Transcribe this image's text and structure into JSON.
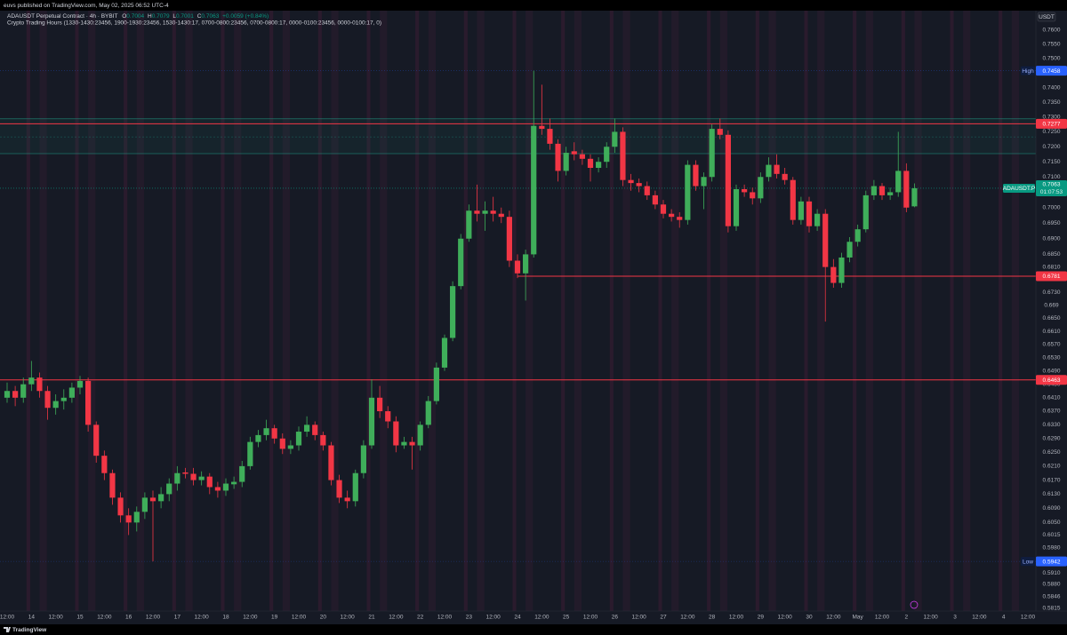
{
  "chart_data": {
    "type": "candlestick",
    "header": "euvs published on TradingView.com, May 02, 2025 06:52 UTC-4",
    "title": "ADAUSDT Perpetual Contract · 4h · BYBIT",
    "ohlc_keys": [
      "O",
      "H",
      "L",
      "C"
    ],
    "change_label": "+0.0059 (+0.84%)",
    "indicator": "Crypto Trading Hours (1330-1430:23456, 1900-1930:23456, 1530-1430:17, 0700-0800:23456, 0700-0800:17, 0000-0100:23456, 0000-0100:17, 0)",
    "currency": "USDT",
    "footer": "TradingView",
    "up_color": "#3fae5a",
    "down_color": "#f23645",
    "log_scale": true,
    "grid": false,
    "categories": [
      "12:00",
      null,
      null,
      "14",
      null,
      null,
      "12:00",
      null,
      null,
      "15",
      null,
      null,
      "12:00",
      null,
      null,
      "16",
      null,
      null,
      "12:00",
      null,
      null,
      "17",
      null,
      null,
      "12:00",
      null,
      null,
      "18",
      null,
      null,
      "12:00",
      null,
      null,
      "19",
      null,
      null,
      "12:00",
      null,
      null,
      "20",
      null,
      null,
      "12:00",
      null,
      null,
      "21",
      null,
      null,
      "12:00",
      null,
      null,
      "22",
      null,
      null,
      "12:00",
      null,
      null,
      "23",
      null,
      null,
      "12:00",
      null,
      null,
      "24",
      null,
      null,
      "12:00",
      null,
      null,
      "25",
      null,
      null,
      "12:00",
      null,
      null,
      "26",
      null,
      null,
      "12:00",
      null,
      null,
      "27",
      null,
      null,
      "12:00",
      null,
      null,
      "28",
      null,
      null,
      "12:00",
      null,
      null,
      "29",
      null,
      null,
      "12:00",
      null,
      null,
      "30",
      null,
      null,
      "12:00",
      null,
      null,
      "May",
      null,
      null,
      "12:00",
      null,
      null,
      "2",
      null,
      null,
      "12:00",
      null,
      null,
      "3",
      null,
      null,
      "12:00",
      null,
      null,
      "4",
      null,
      null,
      "12:00"
    ],
    "open": [
      0.641,
      0.643,
      0.641,
      0.645,
      0.647,
      0.643,
      0.638,
      0.64,
      0.641,
      0.644,
      0.646,
      0.633,
      0.624,
      0.619,
      0.612,
      0.607,
      0.605,
      0.608,
      0.612,
      0.611,
      0.613,
      0.616,
      0.6192,
      0.6188,
      0.617,
      0.618,
      0.615,
      0.614,
      0.6158,
      0.6165,
      0.621,
      0.628,
      0.63,
      0.632,
      0.629,
      0.626,
      0.627,
      0.631,
      0.633,
      0.63,
      0.627,
      0.617,
      0.612,
      0.611,
      0.619,
      0.627,
      0.641,
      0.637,
      0.634,
      0.627,
      0.628,
      0.627,
      0.633,
      0.64,
      0.65,
      0.659,
      0.675,
      0.69,
      0.699,
      0.698,
      0.699,
      0.698,
      0.697,
      0.683,
      0.679,
      0.685,
      0.727,
      0.726,
      0.721,
      0.712,
      0.7185,
      0.7175,
      0.716,
      0.713,
      0.715,
      0.72,
      0.725,
      0.709,
      0.708,
      0.707,
      0.704,
      0.701,
      0.698,
      0.697,
      0.696,
      0.714,
      0.707,
      0.71,
      0.726,
      0.724,
      0.694,
      0.706,
      0.705,
      0.703,
      0.71,
      0.714,
      0.711,
      0.709,
      0.696,
      0.702,
      0.694,
      0.698,
      0.681,
      0.676,
      0.684,
      0.689,
      0.693,
      0.704,
      0.707,
      0.704,
      0.705,
      0.712,
      0.7004,
      null,
      null,
      null,
      null,
      null,
      null,
      null,
      null,
      null,
      null,
      null,
      null,
      null,
      null
    ],
    "high": [
      0.6455,
      0.6445,
      0.647,
      0.652,
      0.6485,
      0.6445,
      0.642,
      0.6435,
      0.6455,
      0.6475,
      0.647,
      0.634,
      0.6255,
      0.62,
      0.6135,
      0.609,
      0.6095,
      0.6135,
      0.614,
      0.615,
      0.6175,
      0.621,
      0.6205,
      0.6205,
      0.6195,
      0.619,
      0.6165,
      0.6175,
      0.618,
      0.6225,
      0.6295,
      0.6315,
      0.6345,
      0.633,
      0.6305,
      0.6285,
      0.6325,
      0.6355,
      0.634,
      0.631,
      0.628,
      0.6185,
      0.614,
      0.62,
      0.6285,
      0.6465,
      0.6445,
      0.6385,
      0.6355,
      0.6295,
      0.6295,
      0.634,
      0.6415,
      0.6515,
      0.66,
      0.6765,
      0.6915,
      0.701,
      0.7075,
      0.702,
      0.7035,
      0.7,
      0.699,
      0.685,
      0.6865,
      0.7458,
      0.741,
      0.7295,
      0.7225,
      0.72,
      0.7215,
      0.719,
      0.7175,
      0.7165,
      0.7215,
      0.7295,
      0.7265,
      0.711,
      0.7095,
      0.7085,
      0.7055,
      0.7025,
      0.6995,
      0.6985,
      0.7155,
      0.7155,
      0.7115,
      0.7275,
      0.7295,
      0.7255,
      0.7075,
      0.7075,
      0.7065,
      0.7115,
      0.7165,
      0.7175,
      0.713,
      0.71,
      0.7035,
      0.7035,
      0.6995,
      0.6995,
      0.6835,
      0.6855,
      0.6905,
      0.6945,
      0.7055,
      0.709,
      0.708,
      0.7065,
      0.725,
      0.7145,
      0.7079,
      null,
      null,
      null,
      null,
      null,
      null,
      null,
      null,
      null,
      null,
      null,
      null,
      null,
      null
    ],
    "low": [
      0.6395,
      0.6385,
      0.6395,
      0.643,
      0.641,
      0.6345,
      0.636,
      0.6375,
      0.6395,
      0.642,
      0.631,
      0.622,
      0.617,
      0.61,
      0.605,
      0.6015,
      0.6025,
      0.606,
      0.5942,
      0.609,
      0.611,
      0.614,
      0.6175,
      0.6155,
      0.6155,
      0.613,
      0.612,
      0.6125,
      0.6145,
      0.615,
      0.62,
      0.6265,
      0.6285,
      0.6275,
      0.6245,
      0.6245,
      0.6255,
      0.6295,
      0.6285,
      0.6255,
      0.6155,
      0.6105,
      0.609,
      0.6095,
      0.6175,
      0.626,
      0.635,
      0.632,
      0.625,
      0.626,
      0.62,
      0.6255,
      0.632,
      0.639,
      0.649,
      0.658,
      0.674,
      0.689,
      0.6955,
      0.6925,
      0.6955,
      0.695,
      0.681,
      0.6775,
      0.6705,
      0.684,
      0.724,
      0.719,
      0.7085,
      0.7105,
      0.7155,
      0.714,
      0.7085,
      0.7115,
      0.713,
      0.718,
      0.707,
      0.7055,
      0.705,
      0.7025,
      0.6995,
      0.6965,
      0.6955,
      0.6935,
      0.6945,
      0.7055,
      0.6995,
      0.7085,
      0.7225,
      0.692,
      0.6925,
      0.7035,
      0.701,
      0.7015,
      0.7085,
      0.7095,
      0.7075,
      0.6945,
      0.6945,
      0.692,
      0.6925,
      0.664,
      0.6745,
      0.6745,
      0.6825,
      0.6875,
      0.692,
      0.7025,
      0.7025,
      0.7025,
      0.7035,
      0.6985,
      0.7001,
      null,
      null,
      null,
      null,
      null,
      null,
      null,
      null,
      null,
      null,
      null,
      null,
      null,
      null
    ],
    "close": [
      0.643,
      0.641,
      0.645,
      0.647,
      0.643,
      0.638,
      0.64,
      0.641,
      0.644,
      0.646,
      0.633,
      0.624,
      0.619,
      0.612,
      0.607,
      0.605,
      0.608,
      0.612,
      0.611,
      0.613,
      0.616,
      0.619,
      0.6188,
      0.617,
      0.618,
      0.615,
      0.614,
      0.616,
      0.6165,
      0.621,
      0.628,
      0.63,
      0.632,
      0.629,
      0.626,
      0.627,
      0.631,
      0.633,
      0.63,
      0.627,
      0.617,
      0.612,
      0.611,
      0.619,
      0.627,
      0.641,
      0.637,
      0.634,
      0.627,
      0.628,
      0.627,
      0.633,
      0.64,
      0.65,
      0.659,
      0.675,
      0.69,
      0.699,
      0.698,
      0.699,
      0.698,
      0.697,
      0.683,
      0.679,
      0.685,
      0.727,
      0.726,
      0.721,
      0.712,
      0.718,
      0.7175,
      0.716,
      0.713,
      0.715,
      0.72,
      0.725,
      0.709,
      0.708,
      0.707,
      0.704,
      0.701,
      0.698,
      0.697,
      0.696,
      0.714,
      0.707,
      0.71,
      0.726,
      0.724,
      0.694,
      0.706,
      0.705,
      0.703,
      0.71,
      0.714,
      0.711,
      0.709,
      0.696,
      0.702,
      0.694,
      0.698,
      0.681,
      0.676,
      0.684,
      0.689,
      0.693,
      0.704,
      0.707,
      0.704,
      0.705,
      0.712,
      0.7,
      0.7063,
      null,
      null,
      null,
      null,
      null,
      null,
      null,
      null,
      null,
      null,
      null,
      null,
      null,
      null
    ],
    "ylim": [
      0.5807,
      0.7637
    ],
    "yticks": [
      {
        "value": 0.76,
        "label": "0.7600"
      },
      {
        "value": 0.755,
        "label": "0.7550"
      },
      {
        "value": 0.75,
        "label": "0.7500"
      },
      {
        "value": 0.74,
        "label": "0.7400"
      },
      {
        "value": 0.735,
        "label": "0.7350"
      },
      {
        "value": 0.73,
        "label": "0.7300"
      },
      {
        "value": 0.725,
        "label": "0.7250"
      },
      {
        "value": 0.72,
        "label": "0.7200"
      },
      {
        "value": 0.715,
        "label": "0.7150"
      },
      {
        "value": 0.71,
        "label": "0.7100"
      },
      {
        "value": 0.7,
        "label": "0.7000"
      },
      {
        "value": 0.695,
        "label": "0.6950"
      },
      {
        "value": 0.69,
        "label": "0.6900"
      },
      {
        "value": 0.685,
        "label": "0.6850"
      },
      {
        "value": 0.681,
        "label": "0.6810"
      },
      {
        "value": 0.673,
        "label": "0.6730"
      },
      0.669,
      {
        "value": 0.665,
        "label": "0.6650"
      },
      {
        "value": 0.661,
        "label": "0.6610"
      },
      {
        "value": 0.657,
        "label": "0.6570"
      },
      {
        "value": 0.653,
        "label": "0.6530"
      },
      {
        "value": 0.649,
        "label": "0.6490"
      },
      {
        "value": 0.645,
        "label": "0.6450"
      },
      {
        "value": 0.641,
        "label": "0.6410"
      },
      {
        "value": 0.637,
        "label": "0.6370"
      },
      {
        "value": 0.633,
        "label": "0.6330"
      },
      {
        "value": 0.629,
        "label": "0.6290"
      },
      {
        "value": 0.625,
        "label": "0.6250"
      },
      {
        "value": 0.621,
        "label": "0.6210"
      },
      {
        "value": 0.617,
        "label": "0.6170"
      },
      {
        "value": 0.613,
        "label": "0.6130"
      },
      {
        "value": 0.609,
        "label": "0.6090"
      },
      {
        "value": 0.605,
        "label": "0.6050"
      },
      0.6015,
      {
        "value": 0.598,
        "label": "0.5980"
      },
      {
        "value": 0.591,
        "label": "0.5910"
      },
      {
        "value": 0.588,
        "label": "0.5880"
      },
      0.5846,
      0.5815
    ],
    "zone": {
      "top": 0.7294,
      "mid": 0.7233,
      "bottom": 0.7177,
      "color": "#22ab94"
    },
    "levels": [
      {
        "value": 0.7277,
        "color": "#f23645"
      },
      {
        "value": 0.6781,
        "color": "#f23645",
        "start": 63
      },
      {
        "value": 0.6463,
        "color": "#f23645"
      }
    ],
    "hi_lo": [
      {
        "label": "High",
        "value": 0.7458
      },
      {
        "label": "Low",
        "value": 0.5942
      }
    ],
    "hi_lo_color": "#2962ff",
    "current": {
      "symbol": "ADAUSDT.P",
      "countdown": "01:07:53",
      "color": "#089981"
    }
  }
}
